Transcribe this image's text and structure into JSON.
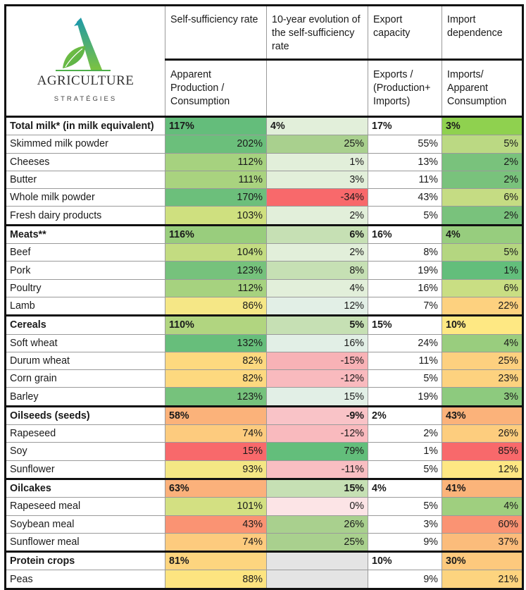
{
  "logo": {
    "title": "AGRICULTURE",
    "subtitle": "STRATÉGIES",
    "colors": {
      "a_top": "#1f9aa8",
      "a_bottom": "#7cc241",
      "leaf": "#6cbf45"
    }
  },
  "headers": {
    "row1": [
      "",
      "Self-sufficiency rate",
      "10-year evolution of the self-sufficiency rate",
      "Export capacity",
      "Import dependence"
    ],
    "row2": [
      "",
      "Apparent Production / Consumption",
      "",
      "Exports / (Production+ Imports)",
      "Imports/ Apparent Consumption"
    ]
  },
  "groups": [
    {
      "name": "Total milk* (in milk equivalent)",
      "values": [
        "117%",
        "4%",
        "17%",
        "3%"
      ],
      "colors": [
        "#64bd7b",
        "#e2efda",
        "#ffffff",
        "#8fd14f"
      ],
      "items": [
        {
          "name": "Skimmed milk powder",
          "values": [
            "202%",
            "25%",
            "55%",
            "5%"
          ],
          "colors": [
            "#6bbf7b",
            "#a9d08e",
            "#ffffff",
            "#bbd983"
          ]
        },
        {
          "name": "Cheeses",
          "values": [
            "112%",
            "1%",
            "13%",
            "2%"
          ],
          "colors": [
            "#a6d27f",
            "#e2efda",
            "#ffffff",
            "#79c27c"
          ]
        },
        {
          "name": "Butter",
          "values": [
            "111%",
            "3%",
            "11%",
            "2%"
          ],
          "colors": [
            "#a9d37f",
            "#e2efda",
            "#ffffff",
            "#79c27c"
          ]
        },
        {
          "name": "Whole milk powder",
          "values": [
            "170%",
            "-34%",
            "43%",
            "6%"
          ],
          "colors": [
            "#6cbf7b",
            "#f8696b",
            "#ffffff",
            "#c5dc83"
          ]
        },
        {
          "name": "Fresh dairy products",
          "values": [
            "103%",
            "2%",
            "5%",
            "2%"
          ],
          "colors": [
            "#cfe07f",
            "#e2efda",
            "#ffffff",
            "#79c27c"
          ]
        }
      ]
    },
    {
      "name": "Meats**",
      "values": [
        "116%",
        "6%",
        "16%",
        "4%"
      ],
      "colors": [
        "#99cd7d",
        "#c6e0b4",
        "#ffffff",
        "#97cd7e"
      ],
      "value_align": [
        "left",
        "right",
        "left",
        "left"
      ],
      "items": [
        {
          "name": "Beef",
          "values": [
            "104%",
            "2%",
            "8%",
            "5%"
          ],
          "colors": [
            "#c3dc81",
            "#e2efda",
            "#ffffff",
            "#b4d680"
          ]
        },
        {
          "name": "Pork",
          "values": [
            "123%",
            "8%",
            "19%",
            "1%"
          ],
          "colors": [
            "#76c27c",
            "#c6e0b4",
            "#ffffff",
            "#63be7b"
          ]
        },
        {
          "name": "Poultry",
          "values": [
            "112%",
            "4%",
            "16%",
            "6%"
          ],
          "colors": [
            "#a6d27f",
            "#e2efda",
            "#ffffff",
            "#c9de83"
          ]
        },
        {
          "name": "Lamb",
          "values": [
            "86%",
            "12%",
            "7%",
            "22%"
          ],
          "colors": [
            "#f5e786",
            "#e2efe6",
            "#ffffff",
            "#fdd17f"
          ]
        }
      ]
    },
    {
      "name": "Cereals",
      "values": [
        "110%",
        "5%",
        "15%",
        "10%"
      ],
      "colors": [
        "#b1d580",
        "#c6e0b4",
        "#ffffff",
        "#fee883"
      ],
      "value_align": [
        "left",
        "right",
        "left",
        "left"
      ],
      "items": [
        {
          "name": "Soft wheat",
          "values": [
            "132%",
            "16%",
            "24%",
            "4%"
          ],
          "colors": [
            "#67be7b",
            "#e2efe6",
            "#ffffff",
            "#99cd7e"
          ]
        },
        {
          "name": "Durum wheat",
          "values": [
            "82%",
            "-15%",
            "11%",
            "25%"
          ],
          "colors": [
            "#fdd97f",
            "#f8b2b6",
            "#ffffff",
            "#fdd07f"
          ]
        },
        {
          "name": "Corn grain",
          "values": [
            "82%",
            "-12%",
            "5%",
            "23%"
          ],
          "colors": [
            "#fdd97f",
            "#f9babe",
            "#ffffff",
            "#fdd27f"
          ]
        },
        {
          "name": "Barley",
          "values": [
            "123%",
            "15%",
            "19%",
            "3%"
          ],
          "colors": [
            "#76c27c",
            "#e2efe6",
            "#ffffff",
            "#8dca7e"
          ]
        }
      ]
    },
    {
      "name": "Oilseeds (seeds)",
      "values": [
        "58%",
        "-9%",
        "2%",
        "43%"
      ],
      "colors": [
        "#fbb27a",
        "#f9c3c7",
        "#ffffff",
        "#fbb27a"
      ],
      "value_align": [
        "left",
        "right",
        "left",
        "left"
      ],
      "items": [
        {
          "name": "Rapeseed",
          "values": [
            "74%",
            "-12%",
            "2%",
            "26%"
          ],
          "colors": [
            "#fdcb7e",
            "#f9babe",
            "#ffffff",
            "#fdcd7e"
          ]
        },
        {
          "name": "Soy",
          "values": [
            "15%",
            "79%",
            "1%",
            "85%"
          ],
          "colors": [
            "#f8696b",
            "#63be7b",
            "#ffffff",
            "#f8696b"
          ]
        },
        {
          "name": "Sunflower",
          "values": [
            "93%",
            "-11%",
            "5%",
            "12%"
          ],
          "colors": [
            "#f4e784",
            "#f9bec2",
            "#ffffff",
            "#fee783"
          ]
        }
      ]
    },
    {
      "name": "Oilcakes",
      "values": [
        "63%",
        "15%",
        "4%",
        "41%"
      ],
      "colors": [
        "#fbb17b",
        "#c6e0b4",
        "#ffffff",
        "#fbb47a"
      ],
      "value_align": [
        "left",
        "right",
        "left",
        "left"
      ],
      "items": [
        {
          "name": "Rapeseed meal",
          "values": [
            "101%",
            "0%",
            "5%",
            "4%"
          ],
          "colors": [
            "#d3e082",
            "#fce4e6",
            "#ffffff",
            "#9fcf7f"
          ]
        },
        {
          "name": "Soybean meal",
          "values": [
            "43%",
            "26%",
            "3%",
            "60%"
          ],
          "colors": [
            "#fa9373",
            "#a9d08e",
            "#ffffff",
            "#fa9373"
          ]
        },
        {
          "name": "Sunflower meal",
          "values": [
            "74%",
            "25%",
            "9%",
            "37%"
          ],
          "colors": [
            "#fdcb7e",
            "#a9d08e",
            "#ffffff",
            "#fbbc7b"
          ]
        }
      ]
    },
    {
      "name": "Protein crops",
      "values": [
        "81%",
        "",
        "10%",
        "30%"
      ],
      "colors": [
        "#fdd57f",
        "#e4e4e4",
        "#ffffff",
        "#fdc97d"
      ],
      "value_align": [
        "left",
        "right",
        "left",
        "left"
      ],
      "items": [
        {
          "name": "Peas",
          "values": [
            "88%",
            "",
            "9%",
            "21%"
          ],
          "colors": [
            "#fde480",
            "#e4e4e4",
            "#ffffff",
            "#fdd47f"
          ]
        }
      ]
    }
  ]
}
